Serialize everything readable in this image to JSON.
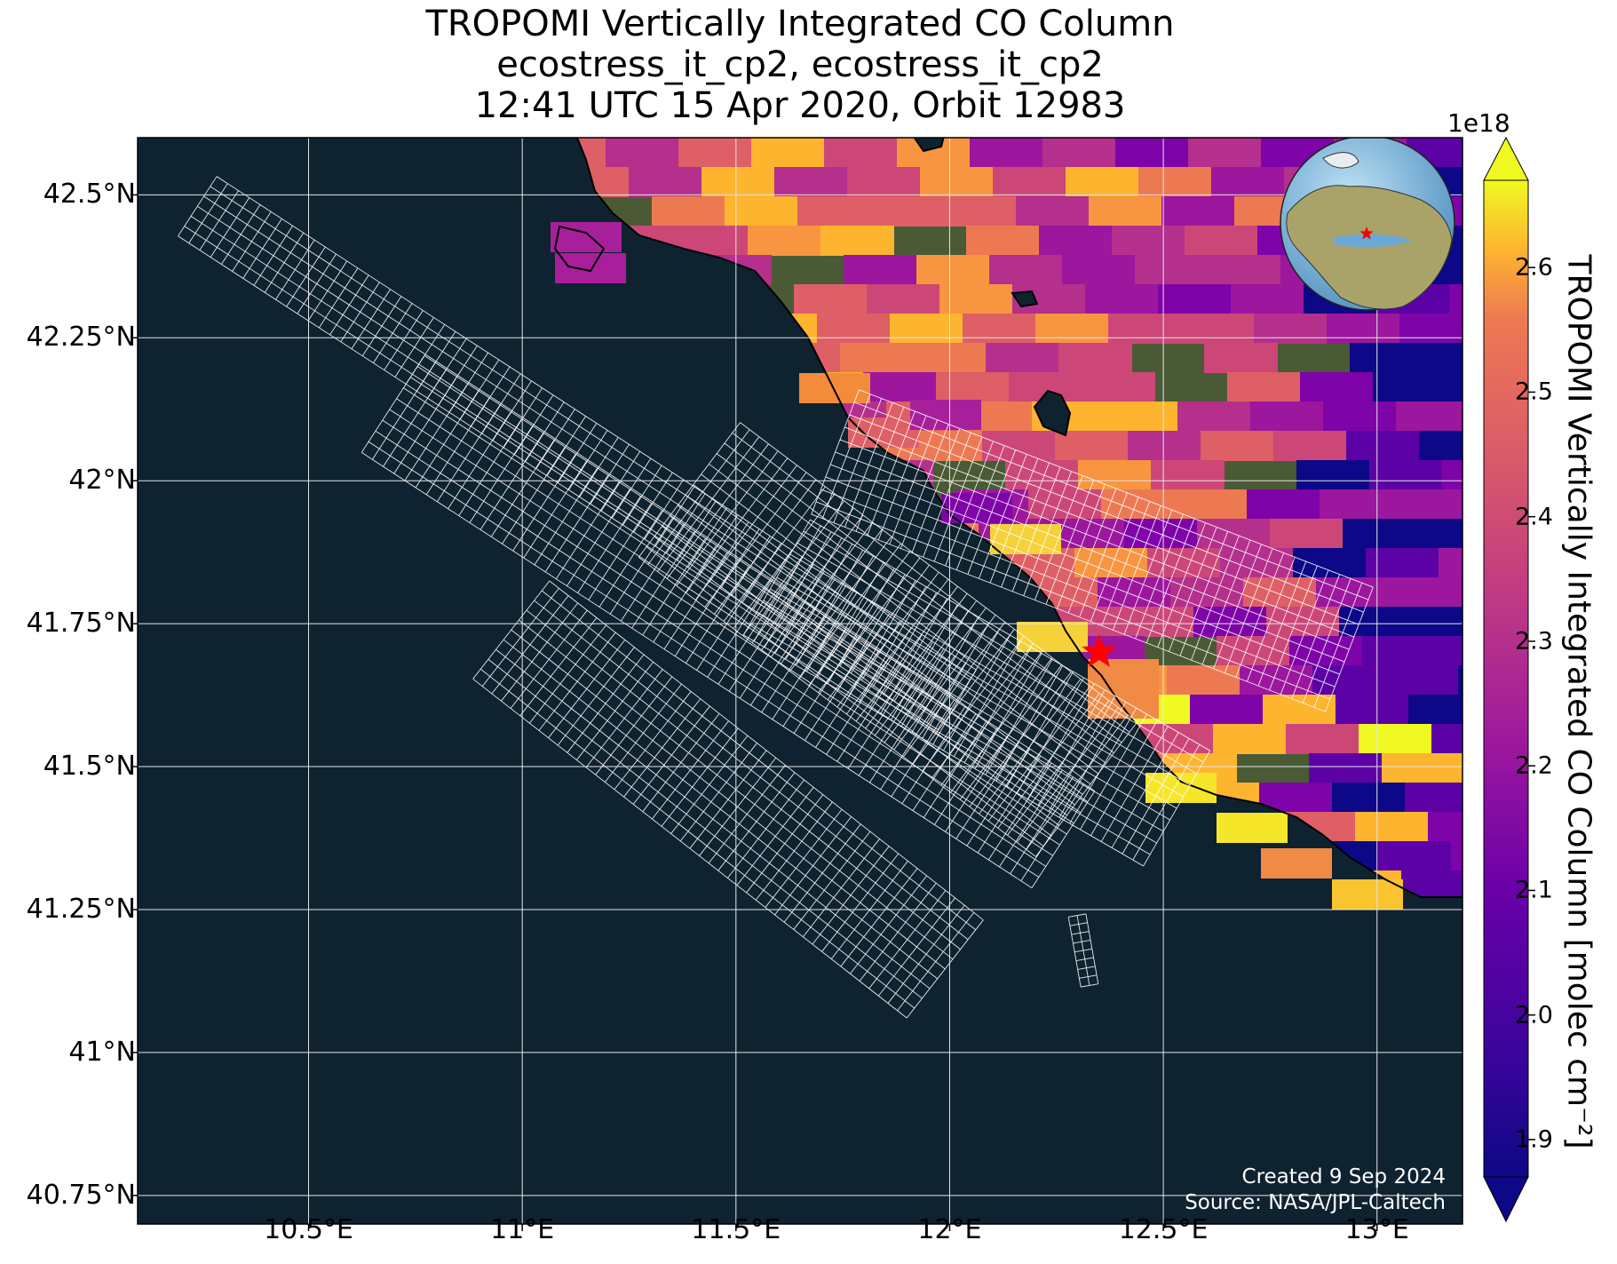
{
  "title": {
    "line1": "TROPOMI Vertically Integrated CO Column",
    "line2": "ecostress_it_cp2, ecostress_it_cp2",
    "line3": "12:41 UTC 15 Apr 2020, Orbit 12983"
  },
  "axes": {
    "lat_labels": [
      "42.5°N",
      "42.25°N",
      "42°N",
      "41.75°N",
      "41.5°N",
      "41.25°N",
      "41°N",
      "40.75°N"
    ],
    "lat_values": [
      42.5,
      42.25,
      42.0,
      41.75,
      41.5,
      41.25,
      41.0,
      40.75
    ],
    "lon_labels": [
      "10.5°E",
      "11°E",
      "11.5°E",
      "12°E",
      "12.5°E",
      "13°E"
    ],
    "lon_values": [
      10.5,
      11.0,
      11.5,
      12.0,
      12.5,
      13.0
    ],
    "lon_range": [
      10.1,
      13.2
    ],
    "lat_range": [
      40.7,
      42.6
    ]
  },
  "colorbar": {
    "label": "TROPOMI Vertically Integrated CO Column [molec cm⁻²]",
    "exponent": "1e18",
    "ticks": [
      "1.9",
      "2.0",
      "2.1",
      "2.2",
      "2.3",
      "2.4",
      "2.5",
      "2.6"
    ],
    "tick_values": [
      1.9,
      2.0,
      2.1,
      2.2,
      2.3,
      2.4,
      2.5,
      2.6
    ],
    "range": [
      1.87,
      2.67
    ],
    "colormap": "plasma",
    "extend": "both"
  },
  "credits": {
    "created": "Created 9 Sep 2024",
    "source": "Source: NASA/JPL-Caltech"
  },
  "target_marker": {
    "lon": 12.35,
    "lat": 41.7,
    "symbol": "star",
    "color": "#ff0000"
  },
  "inset_globe": {
    "marker_color": "#ff0000",
    "region": "Europe / Mediterranean"
  },
  "colors": {
    "ocean": "#0f2230",
    "grid": "#e6e6e6",
    "swath_outline": "#ffffff",
    "coastline": "#000000"
  }
}
